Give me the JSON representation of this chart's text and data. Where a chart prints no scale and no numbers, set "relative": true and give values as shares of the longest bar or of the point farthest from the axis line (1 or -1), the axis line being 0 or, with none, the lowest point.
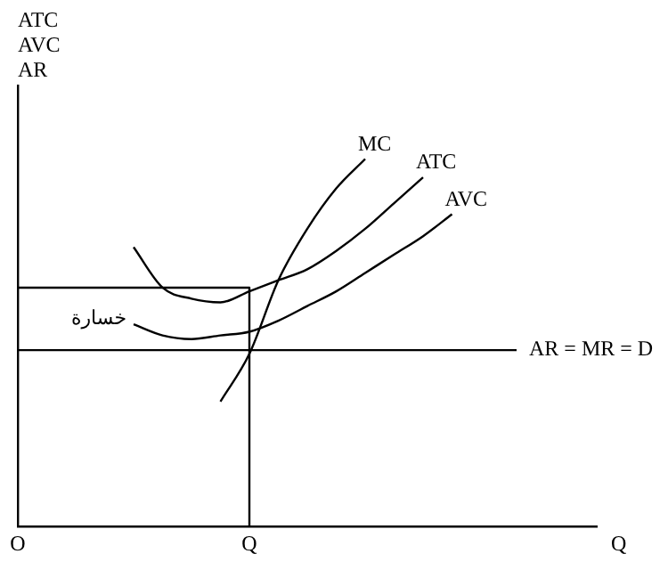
{
  "chart_data": {
    "type": "line",
    "relative": true,
    "ylabel": "ATC\nAVC\nAR",
    "xlabel": "Q",
    "grid": false,
    "legend": false,
    "marker": "none",
    "line_style": "solid",
    "categories": [
      "O",
      null,
      null,
      null,
      null,
      null,
      null,
      null,
      "Q",
      null,
      null,
      null,
      null,
      null,
      null,
      null,
      null,
      null,
      null,
      null,
      null
    ],
    "series": [
      {
        "name": "MC",
        "color": "#000000",
        "values": [
          null,
          null,
          null,
          null,
          null,
          null,
          null,
          0.34,
          0.47,
          0.67,
          0.81,
          0.92,
          1.0,
          null,
          null,
          null,
          null,
          null,
          null,
          null,
          null
        ]
      },
      {
        "name": "ATC",
        "color": "#000000",
        "values": [
          null,
          null,
          null,
          null,
          0.76,
          0.65,
          0.62,
          0.61,
          0.64,
          0.67,
          0.7,
          0.75,
          0.81,
          0.88,
          0.95,
          null,
          null,
          null,
          null,
          null,
          null
        ]
      },
      {
        "name": "AVC",
        "color": "#000000",
        "values": [
          null,
          null,
          null,
          null,
          0.55,
          0.52,
          0.51,
          0.52,
          0.53,
          0.56,
          0.6,
          0.64,
          0.69,
          0.74,
          0.79,
          0.85,
          null,
          null,
          null,
          null,
          null
        ]
      },
      {
        "color": "#000000",
        "x": [
          "O",
          "Q",
          "Q"
        ],
        "values": [
          0.65,
          0.65,
          0
        ]
      }
    ],
    "ref_lines": [
      {
        "axis": "y",
        "value": 0.48,
        "label": "AR = MR = D",
        "color": "#000000"
      }
    ],
    "annotations": [
      "خسارة"
    ]
  }
}
